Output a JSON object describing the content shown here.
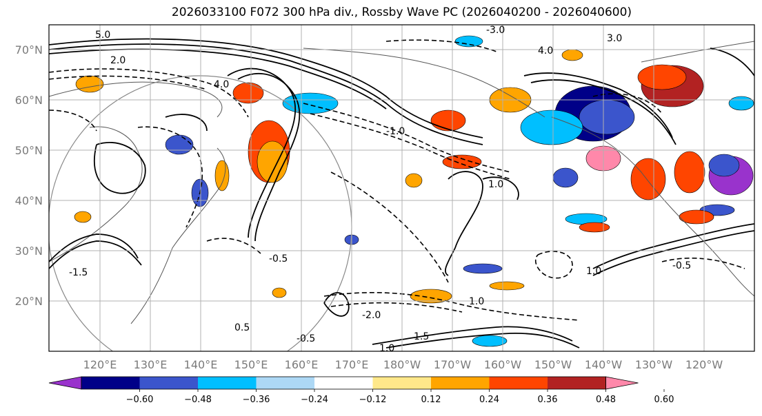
{
  "title": "2026033100 F072 300 hPa div., Rossby Wave PC (2026040200 - 2026040600)",
  "latitude_labels": [
    "70°N",
    "60°N",
    "50°N",
    "40°N",
    "30°N",
    "20°N"
  ],
  "longitude_labels": [
    "120°E",
    "130°E",
    "140°E",
    "150°E",
    "160°E",
    "170°E",
    "180°W",
    "170°W",
    "160°W",
    "150°W",
    "140°W",
    "130°W",
    "120°W"
  ],
  "colorbar": {
    "tick_labels": [
      "−0.60",
      "−0.48",
      "−0.36",
      "−0.24",
      "−0.12",
      "0.12",
      "0.24",
      "0.36",
      "0.48",
      "0.60"
    ],
    "colors": [
      "#9933cc",
      "#000088",
      "#3b55cc",
      "#00bfff",
      "#add8f5",
      "#ffffff",
      "#ffe88a",
      "#ffa500",
      "#ff4500",
      "#b22222",
      "#ff88aa"
    ]
  },
  "contour_labels": [
    "4.0",
    "2.0",
    "1.0",
    "-0.5",
    "-1.0",
    "0.5",
    "1.5",
    "-2.0",
    "3.0",
    "-3.0",
    "-1.5",
    "5.0"
  ],
  "colors": {
    "shade_positive": "#ff4500",
    "shade_negative": "#3b55cc",
    "grid": "#b0b0b0",
    "coast": "#555555"
  }
}
